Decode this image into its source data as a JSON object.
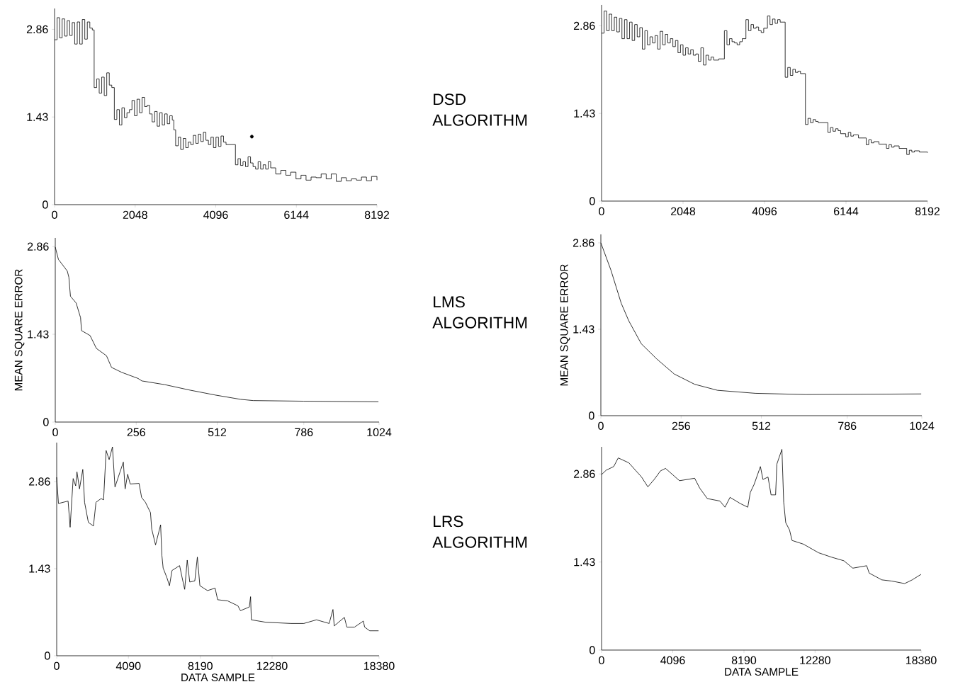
{
  "chart_data": [
    {
      "type": "step",
      "xlim": [
        0,
        8192
      ],
      "ylim": [
        0,
        3.2
      ],
      "xticks": [
        0,
        2048,
        4096,
        6144,
        8192
      ],
      "yticks": [
        0,
        1.43,
        2.86
      ],
      "series": [
        {
          "color": "#000000",
          "x": [
            0,
            64,
            128,
            192,
            256,
            320,
            384,
            448,
            512,
            576,
            640,
            704,
            768,
            832,
            896,
            960,
            1006,
            1070,
            1134,
            1198,
            1262,
            1326,
            1390,
            1454,
            1519,
            1583,
            1647,
            1711,
            1775,
            1839,
            1903,
            1967,
            2031,
            2095,
            2159,
            2223,
            2287,
            2351,
            2415,
            2479,
            2543,
            2607,
            2671,
            2735,
            2799,
            2863,
            2927,
            2991,
            3030,
            3077,
            3141,
            3205,
            3269,
            3333,
            3397,
            3461,
            3525,
            3589,
            3653,
            3717,
            3781,
            3845,
            3909,
            3973,
            4037,
            4101,
            4165,
            4229,
            4293,
            4357,
            4596,
            4660,
            4724,
            4788,
            4852,
            4916,
            4980,
            5044,
            5108,
            5172,
            5236,
            5300,
            5364,
            5428,
            5492,
            5620,
            5750,
            5878,
            6000,
            6134,
            6262,
            6390,
            6518,
            6646,
            6774,
            6902,
            7030,
            7158,
            7286,
            7414,
            7542,
            7670,
            7798,
            7926,
            8054,
            8192
          ],
          "values": [
            2.69,
            3.05,
            2.72,
            3.03,
            2.75,
            3.0,
            2.76,
            2.97,
            2.62,
            2.98,
            2.62,
            3.02,
            2.7,
            2.98,
            2.88,
            2.85,
            1.91,
            2.05,
            1.82,
            2.08,
            1.78,
            2.15,
            1.95,
            1.91,
            1.39,
            1.55,
            1.3,
            1.58,
            1.42,
            1.5,
            1.55,
            1.7,
            1.45,
            1.72,
            1.5,
            1.75,
            1.6,
            1.62,
            1.48,
            1.35,
            1.52,
            1.28,
            1.5,
            1.3,
            1.48,
            1.32,
            1.45,
            1.38,
            1.22,
            0.96,
            1.1,
            0.9,
            1.08,
            0.93,
            1.02,
            0.98,
            1.13,
            1.0,
            1.15,
            1.03,
            1.18,
            1.05,
            0.98,
            1.1,
            0.93,
            1.1,
            0.95,
            1.12,
            1.02,
            0.98,
            0.65,
            0.75,
            0.64,
            0.7,
            0.62,
            0.78,
            0.68,
            0.62,
            0.58,
            0.7,
            0.58,
            0.65,
            0.58,
            0.7,
            0.6,
            0.5,
            0.56,
            0.48,
            0.53,
            0.42,
            0.48,
            0.4,
            0.45,
            0.44,
            0.5,
            0.42,
            0.5,
            0.38,
            0.44,
            0.39,
            0.42,
            0.4,
            0.45,
            0.39,
            0.46,
            0.4
          ]
        },
        {
          "type": "scatter",
          "color": "#000000",
          "marker": "circle",
          "x": [
            5013
          ],
          "values": [
            1.11
          ]
        }
      ]
    },
    {
      "type": "other",
      "title": "DSD ALGORITHM"
    },
    {
      "type": "step",
      "xlim": [
        0,
        8192
      ],
      "ylim": [
        0,
        3.2
      ],
      "xticks": [
        0,
        2048,
        4096,
        6144,
        8192
      ],
      "yticks": [
        0,
        1.43,
        2.86
      ],
      "color": "#000000",
      "x": [
        0,
        64,
        128,
        192,
        256,
        320,
        384,
        448,
        512,
        576,
        640,
        704,
        768,
        832,
        896,
        960,
        1024,
        1088,
        1152,
        1216,
        1280,
        1344,
        1408,
        1472,
        1536,
        1600,
        1664,
        1728,
        1792,
        1856,
        1920,
        1984,
        2048,
        2112,
        2176,
        2240,
        2304,
        2368,
        2432,
        2496,
        2560,
        2624,
        2688,
        2752,
        2816,
        2944,
        3087,
        3151,
        3215,
        3279,
        3343,
        3407,
        3471,
        3535,
        3628,
        3692,
        3756,
        3820,
        3884,
        3948,
        4012,
        4076,
        4169,
        4233,
        4297,
        4361,
        4425,
        4489,
        4615,
        4679,
        4743,
        4807,
        4871,
        4935,
        5000,
        5124,
        5188,
        5252,
        5316,
        5380,
        5444,
        5550,
        5689,
        5753,
        5817,
        5881,
        5945,
        6009,
        6137,
        6201,
        6265,
        6329,
        6457,
        6651,
        6715,
        6779,
        6843,
        6971,
        7160,
        7224,
        7288,
        7352,
        7480,
        7670,
        7734,
        7798,
        7862,
        7990,
        8192
      ],
      "values": [
        2.74,
        3.1,
        2.78,
        3.05,
        2.78,
        3.0,
        2.76,
        2.98,
        2.65,
        2.96,
        2.65,
        2.92,
        2.62,
        2.88,
        2.68,
        2.83,
        2.48,
        2.78,
        2.55,
        2.68,
        2.58,
        2.7,
        2.48,
        2.77,
        2.55,
        2.72,
        2.58,
        2.65,
        2.52,
        2.62,
        2.42,
        2.55,
        2.38,
        2.5,
        2.4,
        2.47,
        2.38,
        2.4,
        2.28,
        2.5,
        2.22,
        2.38,
        2.3,
        2.35,
        2.3,
        2.32,
        2.78,
        2.55,
        2.65,
        2.6,
        2.58,
        2.55,
        2.6,
        2.65,
        2.96,
        2.78,
        2.88,
        2.82,
        2.84,
        2.78,
        2.75,
        2.82,
        3.02,
        2.88,
        2.97,
        2.9,
        2.96,
        2.92,
        2.02,
        2.18,
        2.05,
        2.15,
        2.1,
        2.12,
        2.08,
        1.25,
        1.35,
        1.28,
        1.33,
        1.3,
        1.28,
        1.28,
        1.12,
        1.2,
        1.14,
        1.18,
        1.15,
        1.1,
        1.05,
        1.12,
        1.06,
        1.08,
        1.03,
        0.92,
        1.0,
        0.95,
        0.97,
        0.93,
        0.86,
        0.92,
        0.88,
        0.9,
        0.86,
        0.76,
        0.83,
        0.8,
        0.82,
        0.8,
        0.79
      ]
    },
    {
      "type": "line",
      "ylabel": "MEAN SQUARE ERROR",
      "xlim": [
        0,
        1024
      ],
      "ylim": [
        0,
        3.0
      ],
      "xticks": [
        0,
        256,
        512,
        786,
        1024
      ],
      "yticks": [
        0,
        1.43,
        2.86
      ],
      "color": "#000000",
      "x": [
        0,
        10,
        38,
        43,
        48,
        66,
        80,
        83,
        110,
        130,
        162,
        178,
        210,
        262,
        274,
        346,
        426,
        506,
        586,
        626,
        786,
        1022
      ],
      "values": [
        2.85,
        2.65,
        2.46,
        2.36,
        2.05,
        1.94,
        1.7,
        1.49,
        1.41,
        1.2,
        1.08,
        0.89,
        0.81,
        0.71,
        0.67,
        0.61,
        0.52,
        0.44,
        0.37,
        0.35,
        0.34,
        0.33
      ]
    },
    {
      "type": "other",
      "title": "LMS ALGORITHM"
    },
    {
      "type": "line",
      "ylabel": "MEAN SQUARE ERROR",
      "xlim": [
        0,
        1024
      ],
      "ylim": [
        0,
        3.0
      ],
      "xticks": [
        0,
        256,
        512,
        786,
        1024
      ],
      "yticks": [
        0,
        1.43,
        2.86
      ],
      "color": "#000000",
      "x": [
        0,
        32,
        65,
        89,
        129,
        178,
        234,
        299,
        372,
        493,
        654,
        1022
      ],
      "values": [
        2.86,
        2.41,
        1.86,
        1.57,
        1.19,
        0.94,
        0.69,
        0.52,
        0.42,
        0.37,
        0.35,
        0.36
      ]
    },
    {
      "type": "line",
      "xlabel": "DATA SAMPLE",
      "xlim": [
        0,
        18380
      ],
      "ylim": [
        0,
        3.5
      ],
      "xticks": [
        0,
        4090,
        8190,
        12280,
        18380
      ],
      "yticks": [
        0,
        1.43,
        2.86
      ],
      "color": "#000000",
      "x": [
        0,
        101,
        650,
        766,
        867,
        939,
        1084,
        1156,
        1300,
        1488,
        1590,
        1806,
        2095,
        2240,
        2529,
        2673,
        2818,
        2991,
        3179,
        3324,
        3613,
        3800,
        3902,
        4046,
        4191,
        4696,
        4841,
        5058,
        5347,
        5419,
        5636,
        5925,
        5997,
        6069,
        6286,
        6430,
        6575,
        7008,
        7153,
        7297,
        7442,
        7586,
        7875,
        8020,
        8164,
        8598,
        9031,
        9176,
        9754,
        10332,
        10476,
        10982,
        11054,
        11098,
        11921,
        12644,
        13366,
        14089,
        14811,
        15534,
        15751,
        15823,
        16401,
        16545,
        16979,
        17484,
        17557,
        17846,
        18352
      ],
      "values": [
        2.93,
        2.5,
        2.54,
        2.11,
        2.58,
        2.91,
        2.79,
        3.02,
        2.74,
        3.06,
        2.52,
        2.19,
        2.13,
        2.52,
        2.58,
        2.56,
        3.37,
        3.22,
        3.43,
        2.77,
        3.02,
        3.18,
        2.74,
        2.98,
        2.82,
        2.83,
        2.6,
        2.52,
        2.35,
        2.08,
        1.82,
        2.15,
        1.65,
        1.44,
        1.28,
        1.15,
        1.4,
        1.48,
        1.28,
        1.09,
        1.57,
        1.21,
        1.23,
        1.62,
        1.15,
        1.07,
        1.11,
        0.92,
        0.9,
        0.82,
        0.74,
        0.8,
        0.97,
        0.59,
        0.55,
        0.54,
        0.53,
        0.53,
        0.59,
        0.53,
        0.76,
        0.49,
        0.63,
        0.47,
        0.47,
        0.57,
        0.47,
        0.41,
        0.41
      ]
    },
    {
      "type": "other",
      "title": "LRS ALGORITHM"
    },
    {
      "type": "line",
      "xlabel": "DATA SAMPLE",
      "xlim": [
        0,
        18380
      ],
      "ylim": [
        0,
        3.3
      ],
      "xticks": [
        0,
        4096,
        8190,
        12280,
        18380
      ],
      "yticks": [
        0,
        1.43,
        2.86
      ],
      "color": "#000000",
      "x": [
        0,
        262,
        698,
        960,
        1571,
        2299,
        2663,
        3026,
        3390,
        3681,
        4481,
        5354,
        5645,
        6082,
        6809,
        7100,
        7391,
        7973,
        8410,
        8555,
        8774,
        9137,
        9283,
        9574,
        9749,
        10010,
        10083,
        10374,
        10476,
        10592,
        10811,
        10956,
        11611,
        12484,
        13211,
        13939,
        14448,
        15248,
        15394,
        16121,
        16703,
        17431,
        17867,
        18377
      ],
      "values": [
        2.85,
        2.92,
        2.98,
        3.12,
        3.04,
        2.81,
        2.65,
        2.77,
        2.91,
        2.95,
        2.75,
        2.79,
        2.63,
        2.46,
        2.42,
        2.32,
        2.48,
        2.38,
        2.32,
        2.56,
        2.69,
        2.98,
        2.77,
        2.81,
        2.52,
        2.52,
        3.02,
        3.26,
        2.4,
        2.07,
        1.95,
        1.78,
        1.72,
        1.58,
        1.51,
        1.45,
        1.33,
        1.37,
        1.25,
        1.14,
        1.12,
        1.08,
        1.14,
        1.23
      ]
    }
  ]
}
